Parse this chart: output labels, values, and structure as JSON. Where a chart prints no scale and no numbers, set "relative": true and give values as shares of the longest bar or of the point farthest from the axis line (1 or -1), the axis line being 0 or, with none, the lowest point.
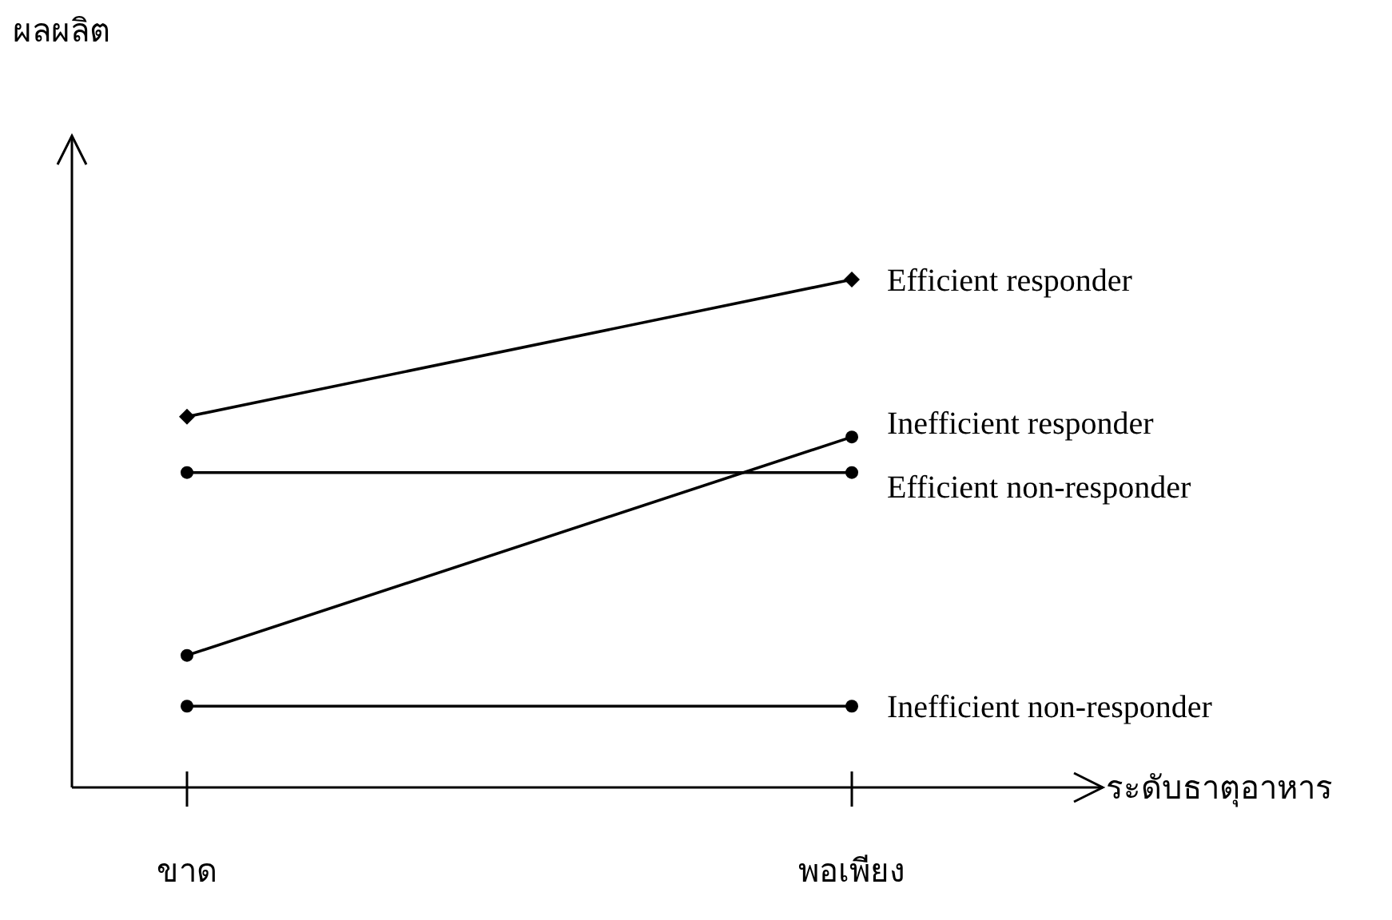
{
  "chart_data": {
    "type": "line",
    "relative": true,
    "annotations": [
      "ผลผลิต"
    ],
    "xlabel": "ระดับธาตุอาหาร",
    "categories": [
      "ขาด",
      "พอเพียง"
    ],
    "series": [
      {
        "name": "Efficient responder",
        "color": "#000000",
        "marker": "diamond",
        "values": [
          0.73,
          1
        ]
      },
      {
        "name": "Inefficient responder",
        "color": "#000000",
        "marker": "circle",
        "values": [
          0.26,
          0.69
        ]
      },
      {
        "name": "Efficient non-responder",
        "color": "#000000",
        "marker": "circle",
        "values": [
          0.62,
          0.62
        ]
      },
      {
        "name": "Inefficient non-responder",
        "color": "#000000",
        "marker": "circle",
        "values": [
          0.16,
          0.16
        ]
      }
    ]
  }
}
